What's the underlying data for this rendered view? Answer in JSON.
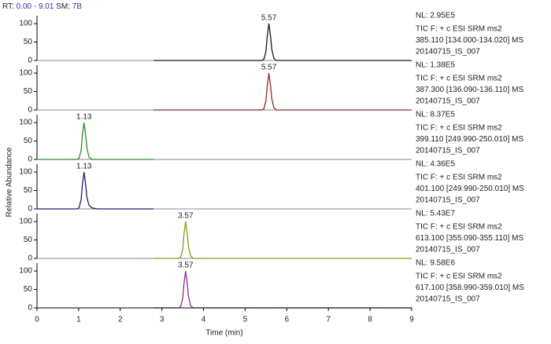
{
  "header": {
    "rt_label": "RT:",
    "rt_range": "0.00 - 9.01",
    "sm_label": "SM:",
    "sm_value": "7B"
  },
  "shared": {
    "ylabel": "Relative Abundance"
  },
  "chart_data": [
    {
      "type": "line",
      "color": "#1a1a1a",
      "peak_label": 5.57,
      "x": [
        2.8,
        5.4,
        5.45,
        5.5,
        5.53,
        5.57,
        5.61,
        5.64,
        5.69,
        5.75,
        9.0
      ],
      "values": [
        0,
        0,
        3,
        25,
        65,
        100,
        65,
        30,
        6,
        0,
        0
      ],
      "xlim": [
        0,
        9
      ],
      "ylim": [
        0,
        130
      ],
      "yticks": [
        0,
        50,
        100
      ],
      "nl": "NL: 2.95E5",
      "info": [
        "TIC F: + c ESI SRM ms2",
        "385.110 [134.000-134.020] MS",
        "20140715_IS_007"
      ]
    },
    {
      "type": "line",
      "color": "#8b2b2b",
      "peak_label": 5.57,
      "x": [
        2.8,
        5.4,
        5.45,
        5.5,
        5.53,
        5.57,
        5.61,
        5.64,
        5.69,
        5.75,
        9.0
      ],
      "values": [
        0,
        0,
        3,
        25,
        65,
        100,
        65,
        30,
        6,
        0,
        0
      ],
      "xlim": [
        0,
        9
      ],
      "ylim": [
        0,
        130
      ],
      "yticks": [
        0,
        50,
        100
      ],
      "nl": "NL: 1.38E5",
      "info": [
        "TIC F: + c ESI SRM ms2",
        "387.300 [136.090-136.110] MS",
        "20140715_IS_007"
      ]
    },
    {
      "type": "line",
      "color": "#2e8b2e",
      "peak_label": 1.13,
      "x": [
        0,
        0.96,
        1.01,
        1.06,
        1.09,
        1.13,
        1.17,
        1.2,
        1.25,
        1.32,
        2.8
      ],
      "values": [
        0,
        0,
        3,
        25,
        65,
        100,
        65,
        30,
        6,
        0,
        0
      ],
      "xlim": [
        0,
        9
      ],
      "ylim": [
        0,
        130
      ],
      "yticks": [
        0,
        50,
        100
      ],
      "nl": "NL: 8.37E5",
      "info": [
        "TIC F: + c ESI SRM ms2",
        "399.110 [249.990-250.010] MS",
        "20140715_IS_007"
      ]
    },
    {
      "type": "line",
      "color": "#1c1c6e",
      "peak_label": 1.13,
      "x": [
        0,
        0.96,
        1.01,
        1.06,
        1.09,
        1.13,
        1.17,
        1.2,
        1.25,
        1.32,
        1.45,
        2.8
      ],
      "values": [
        0,
        0,
        3,
        25,
        65,
        100,
        65,
        30,
        10,
        3,
        0,
        0
      ],
      "xlim": [
        0,
        9
      ],
      "ylim": [
        0,
        130
      ],
      "yticks": [
        0,
        50,
        100
      ],
      "nl": "NL: 4.36E5",
      "info": [
        "TIC F: + c ESI SRM ms2",
        "401.100 [249.990-250.010] MS",
        "20140715_IS_007"
      ]
    },
    {
      "type": "line",
      "color": "#8a9a1a",
      "peak_label": 3.57,
      "x": [
        2.8,
        3.4,
        3.45,
        3.5,
        3.53,
        3.57,
        3.61,
        3.64,
        3.69,
        3.75,
        9.0
      ],
      "values": [
        0,
        0,
        3,
        25,
        65,
        100,
        65,
        30,
        6,
        0,
        0
      ],
      "xlim": [
        0,
        9
      ],
      "ylim": [
        0,
        130
      ],
      "yticks": [
        0,
        50,
        100
      ],
      "nl": "NL: 5.43E7",
      "info": [
        "TIC F: + c ESI SRM ms2",
        "613.100 [355.090-355.110] MS",
        "20140715_IS_007"
      ]
    },
    {
      "type": "line",
      "color": "#8b2b8b",
      "peak_label": 3.57,
      "x": [
        2.8,
        3.4,
        3.45,
        3.5,
        3.53,
        3.57,
        3.61,
        3.64,
        3.69,
        3.75,
        9.0
      ],
      "values": [
        0,
        0,
        3,
        25,
        65,
        100,
        65,
        30,
        6,
        0,
        0
      ],
      "xlim": [
        0,
        9
      ],
      "ylim": [
        0,
        130
      ],
      "yticks": [
        0,
        50,
        100
      ],
      "xticks": [
        0,
        1,
        2,
        3,
        4,
        5,
        6,
        7,
        8,
        9
      ],
      "xlabel": "Time (min)",
      "nl": "NL: 9.58E6",
      "info": [
        "TIC F: + c ESI SRM ms2",
        "617.100 [358.990-359.010] MS",
        "20140715_IS_007"
      ]
    }
  ]
}
